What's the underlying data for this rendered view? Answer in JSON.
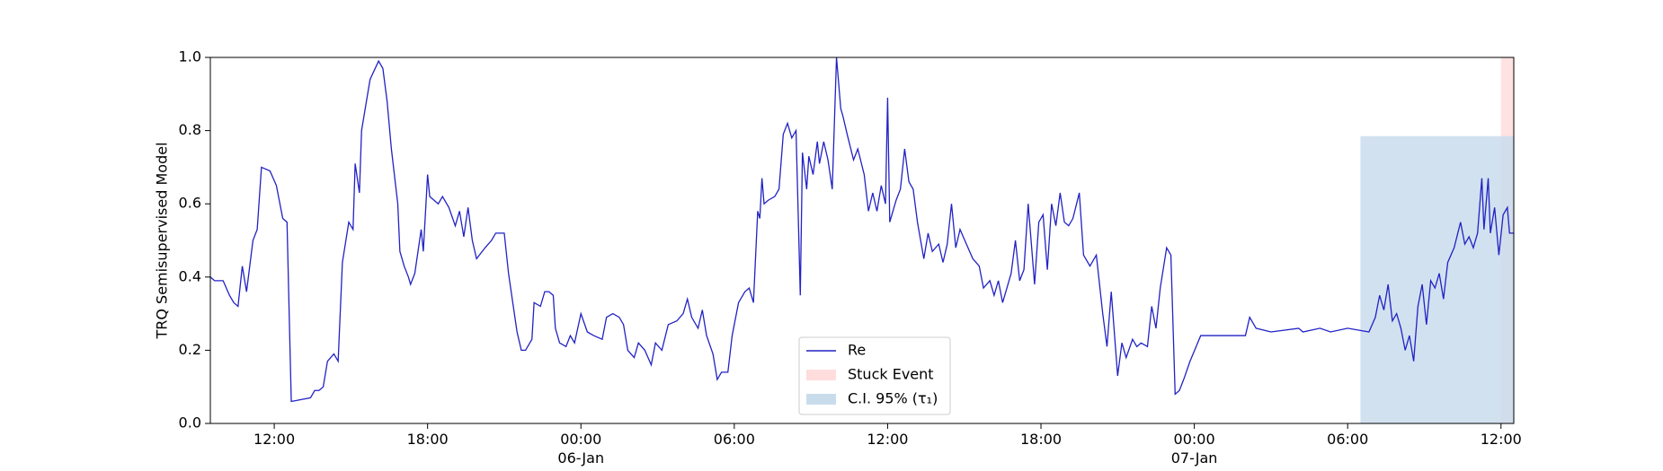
{
  "chart_data": {
    "type": "line",
    "ylabel": "TRQ Semisupervised Model",
    "x": [
      "1900-01-05T09:30",
      "1900-01-05T09:40",
      "1900-01-05T10:00",
      "1900-01-05T10:15",
      "1900-01-05T10:25",
      "1900-01-05T10:35",
      "1900-01-05T10:45",
      "1900-01-05T10:55",
      "1900-01-05T11:10",
      "1900-01-05T11:20",
      "1900-01-05T11:30",
      "1900-01-05T11:50",
      "1900-01-05T12:05",
      "1900-01-05T12:20",
      "1900-01-05T12:30",
      "1900-01-05T12:40",
      "1900-01-05T13:25",
      "1900-01-05T13:35",
      "1900-01-05T13:45",
      "1900-01-05T13:55",
      "1900-01-05T14:05",
      "1900-01-05T14:20",
      "1900-01-05T14:30",
      "1900-01-05T14:40",
      "1900-01-05T14:55",
      "1900-01-05T15:05",
      "1900-01-05T15:10",
      "1900-01-05T15:20",
      "1900-01-05T15:25",
      "1900-01-05T15:35",
      "1900-01-05T15:45",
      "1900-01-05T16:05",
      "1900-01-05T16:15",
      "1900-01-05T16:25",
      "1900-01-05T16:35",
      "1900-01-05T16:50",
      "1900-01-05T16:55",
      "1900-01-05T17:05",
      "1900-01-05T17:15",
      "1900-01-05T17:20",
      "1900-01-05T17:30",
      "1900-01-05T17:45",
      "1900-01-05T17:50",
      "1900-01-05T18:00",
      "1900-01-05T18:05",
      "1900-01-05T18:25",
      "1900-01-05T18:35",
      "1900-01-05T18:50",
      "1900-01-05T19:05",
      "1900-01-05T19:15",
      "1900-01-05T19:25",
      "1900-01-05T19:35",
      "1900-01-05T19:45",
      "1900-01-05T19:55",
      "1900-01-05T20:15",
      "1900-01-05T20:30",
      "1900-01-05T20:40",
      "1900-01-05T21:00",
      "1900-01-05T21:10",
      "1900-01-05T21:20",
      "1900-01-05T21:30",
      "1900-01-05T21:40",
      "1900-01-05T21:50",
      "1900-01-05T22:05",
      "1900-01-05T22:10",
      "1900-01-05T22:25",
      "1900-01-05T22:35",
      "1900-01-05T22:45",
      "1900-01-05T22:55",
      "1900-01-05T23:00",
      "1900-01-05T23:10",
      "1900-01-05T23:25",
      "1900-01-05T23:35",
      "1900-01-05T23:45",
      "1900-01-06T00:00",
      "1900-01-06T00:15",
      "1900-01-06T00:30",
      "1900-01-06T00:50",
      "1900-01-06T01:00",
      "1900-01-06T01:15",
      "1900-01-06T01:30",
      "1900-01-06T01:40",
      "1900-01-06T01:50",
      "1900-01-06T02:05",
      "1900-01-06T02:15",
      "1900-01-06T02:30",
      "1900-01-06T02:45",
      "1900-01-06T02:55",
      "1900-01-06T03:10",
      "1900-01-06T03:25",
      "1900-01-06T03:45",
      "1900-01-06T04:00",
      "1900-01-06T04:10",
      "1900-01-06T04:20",
      "1900-01-06T04:35",
      "1900-01-06T04:45",
      "1900-01-06T04:55",
      "1900-01-06T05:10",
      "1900-01-06T05:20",
      "1900-01-06T05:30",
      "1900-01-06T05:45",
      "1900-01-06T05:55",
      "1900-01-06T06:10",
      "1900-01-06T06:25",
      "1900-01-06T06:35",
      "1900-01-06T06:45",
      "1900-01-06T06:55",
      "1900-01-06T07:00",
      "1900-01-06T07:05",
      "1900-01-06T07:10",
      "1900-01-06T07:20",
      "1900-01-06T07:35",
      "1900-01-06T07:45",
      "1900-01-06T07:55",
      "1900-01-06T08:05",
      "1900-01-06T08:15",
      "1900-01-06T08:25",
      "1900-01-06T08:35",
      "1900-01-06T08:40",
      "1900-01-06T08:50",
      "1900-01-06T08:55",
      "1900-01-06T09:05",
      "1900-01-06T09:15",
      "1900-01-06T09:20",
      "1900-01-06T09:30",
      "1900-01-06T09:40",
      "1900-01-06T09:50",
      "1900-01-06T10:00",
      "1900-01-06T10:10",
      "1900-01-06T10:15",
      "1900-01-06T10:25",
      "1900-01-06T10:40",
      "1900-01-06T10:50",
      "1900-01-06T11:05",
      "1900-01-06T11:15",
      "1900-01-06T11:25",
      "1900-01-06T11:35",
      "1900-01-06T11:45",
      "1900-01-06T11:55",
      "1900-01-06T12:00",
      "1900-01-06T12:05",
      "1900-01-06T12:20",
      "1900-01-06T12:30",
      "1900-01-06T12:40",
      "1900-01-06T12:50",
      "1900-01-06T13:00",
      "1900-01-06T13:10",
      "1900-01-06T13:25",
      "1900-01-06T13:35",
      "1900-01-06T13:45",
      "1900-01-06T14:00",
      "1900-01-06T14:10",
      "1900-01-06T14:20",
      "1900-01-06T14:30",
      "1900-01-06T14:40",
      "1900-01-06T14:50",
      "1900-01-06T15:05",
      "1900-01-06T15:20",
      "1900-01-06T15:35",
      "1900-01-06T15:45",
      "1900-01-06T16:00",
      "1900-01-06T16:10",
      "1900-01-06T16:20",
      "1900-01-06T16:30",
      "1900-01-06T16:40",
      "1900-01-06T16:50",
      "1900-01-06T17:00",
      "1900-01-06T17:10",
      "1900-01-06T17:20",
      "1900-01-06T17:30",
      "1900-01-06T17:45",
      "1900-01-06T17:55",
      "1900-01-06T18:05",
      "1900-01-06T18:15",
      "1900-01-06T18:25",
      "1900-01-06T18:35",
      "1900-01-06T18:45",
      "1900-01-06T18:55",
      "1900-01-06T19:05",
      "1900-01-06T19:15",
      "1900-01-06T19:30",
      "1900-01-06T19:40",
      "1900-01-06T19:55",
      "1900-01-06T20:10",
      "1900-01-06T20:25",
      "1900-01-06T20:35",
      "1900-01-06T20:45",
      "1900-01-06T21:00",
      "1900-01-06T21:10",
      "1900-01-06T21:20",
      "1900-01-06T21:35",
      "1900-01-06T21:45",
      "1900-01-06T21:55",
      "1900-01-06T22:10",
      "1900-01-06T22:20",
      "1900-01-06T22:30",
      "1900-01-06T22:40",
      "1900-01-06T22:55",
      "1900-01-06T23:05",
      "1900-01-06T23:15",
      "1900-01-06T23:25",
      "1900-01-06T23:35",
      "1900-01-06T23:50",
      "1900-01-07T00:15",
      "1900-01-07T01:10",
      "1900-01-07T02:00",
      "1900-01-07T02:10",
      "1900-01-07T02:25",
      "1900-01-07T03:00",
      "1900-01-07T04:05",
      "1900-01-07T04:15",
      "1900-01-07T04:55",
      "1900-01-07T05:20",
      "1900-01-07T06:00",
      "1900-01-07T06:50",
      "1900-01-07T07:05",
      "1900-01-07T07:15",
      "1900-01-07T07:25",
      "1900-01-07T07:35",
      "1900-01-07T07:45",
      "1900-01-07T07:55",
      "1900-01-07T08:05",
      "1900-01-07T08:15",
      "1900-01-07T08:25",
      "1900-01-07T08:35",
      "1900-01-07T08:45",
      "1900-01-07T08:55",
      "1900-01-07T09:05",
      "1900-01-07T09:15",
      "1900-01-07T09:25",
      "1900-01-07T09:35",
      "1900-01-07T09:45",
      "1900-01-07T09:55",
      "1900-01-07T10:10",
      "1900-01-07T10:25",
      "1900-01-07T10:35",
      "1900-01-07T10:45",
      "1900-01-07T10:55",
      "1900-01-07T11:05",
      "1900-01-07T11:15",
      "1900-01-07T11:20",
      "1900-01-07T11:30",
      "1900-01-07T11:35",
      "1900-01-07T11:45",
      "1900-01-07T11:55",
      "1900-01-07T12:05",
      "1900-01-07T12:15",
      "1900-01-07T12:20",
      "1900-01-07T12:30"
    ],
    "series": [
      {
        "name": "Re",
        "color": "#2222c4",
        "values": [
          0.4,
          0.39,
          0.39,
          0.35,
          0.33,
          0.32,
          0.43,
          0.36,
          0.5,
          0.53,
          0.7,
          0.69,
          0.65,
          0.56,
          0.55,
          0.06,
          0.07,
          0.09,
          0.09,
          0.1,
          0.17,
          0.19,
          0.17,
          0.44,
          0.55,
          0.53,
          0.71,
          0.63,
          0.8,
          0.87,
          0.94,
          0.99,
          0.97,
          0.88,
          0.75,
          0.6,
          0.47,
          0.43,
          0.4,
          0.38,
          0.41,
          0.53,
          0.47,
          0.68,
          0.62,
          0.6,
          0.62,
          0.59,
          0.54,
          0.58,
          0.51,
          0.59,
          0.5,
          0.45,
          0.48,
          0.5,
          0.52,
          0.52,
          0.41,
          0.33,
          0.25,
          0.2,
          0.2,
          0.23,
          0.33,
          0.32,
          0.36,
          0.36,
          0.35,
          0.26,
          0.22,
          0.21,
          0.24,
          0.22,
          0.3,
          0.25,
          0.24,
          0.23,
          0.29,
          0.3,
          0.29,
          0.27,
          0.2,
          0.18,
          0.22,
          0.2,
          0.16,
          0.22,
          0.2,
          0.27,
          0.28,
          0.3,
          0.34,
          0.29,
          0.26,
          0.31,
          0.24,
          0.19,
          0.12,
          0.14,
          0.14,
          0.24,
          0.33,
          0.36,
          0.37,
          0.33,
          0.58,
          0.56,
          0.67,
          0.6,
          0.61,
          0.62,
          0.64,
          0.79,
          0.82,
          0.78,
          0.8,
          0.35,
          0.74,
          0.64,
          0.73,
          0.68,
          0.77,
          0.71,
          0.77,
          0.72,
          0.64,
          1.0,
          0.86,
          0.84,
          0.79,
          0.72,
          0.75,
          0.68,
          0.58,
          0.63,
          0.58,
          0.65,
          0.6,
          0.89,
          0.55,
          0.61,
          0.64,
          0.75,
          0.66,
          0.64,
          0.55,
          0.45,
          0.52,
          0.47,
          0.49,
          0.44,
          0.49,
          0.6,
          0.48,
          0.53,
          0.49,
          0.45,
          0.43,
          0.37,
          0.39,
          0.35,
          0.39,
          0.33,
          0.37,
          0.41,
          0.5,
          0.39,
          0.42,
          0.6,
          0.38,
          0.55,
          0.57,
          0.42,
          0.6,
          0.54,
          0.63,
          0.55,
          0.54,
          0.56,
          0.63,
          0.46,
          0.43,
          0.46,
          0.3,
          0.21,
          0.36,
          0.13,
          0.22,
          0.18,
          0.23,
          0.21,
          0.22,
          0.21,
          0.32,
          0.26,
          0.37,
          0.48,
          0.46,
          0.08,
          0.09,
          0.12,
          0.17,
          0.24,
          0.24,
          0.24,
          0.29,
          0.26,
          0.25,
          0.26,
          0.25,
          0.26,
          0.25,
          0.26,
          0.25,
          0.29,
          0.35,
          0.31,
          0.38,
          0.28,
          0.3,
          0.26,
          0.2,
          0.24,
          0.17,
          0.32,
          0.38,
          0.27,
          0.39,
          0.37,
          0.41,
          0.34,
          0.44,
          0.48,
          0.55,
          0.49,
          0.51,
          0.48,
          0.52,
          0.67,
          0.53,
          0.67,
          0.52,
          0.59,
          0.46,
          0.57,
          0.59,
          0.52,
          0.52
        ]
      }
    ],
    "spans": [
      {
        "name": "Stuck Event",
        "color": "#ffdddd",
        "x": [
          "1900-01-07T12:00",
          "1900-01-07T12:30"
        ],
        "y": [
          0,
          1
        ]
      },
      {
        "name": "C.I. 95% (τ₁)",
        "color": "#c9dcec",
        "x": [
          "1900-01-07T06:30",
          "1900-01-07T12:30"
        ],
        "y": [
          0,
          0.785
        ]
      }
    ],
    "xlim": [
      "1900-01-05T09:30",
      "1900-01-07T12:30"
    ],
    "xticks": [
      {
        "value": "1900-01-05T12:00",
        "label": "12:00"
      },
      {
        "value": "1900-01-05T18:00",
        "label": "18:00"
      },
      {
        "value": "1900-01-06T00:00",
        "label": "00:00\n06-Jan\n1900"
      },
      {
        "value": "1900-01-06T06:00",
        "label": "06:00"
      },
      {
        "value": "1900-01-06T12:00",
        "label": "12:00"
      },
      {
        "value": "1900-01-06T18:00",
        "label": "18:00"
      },
      {
        "value": "1900-01-07T00:00",
        "label": "00:00\n07-Jan"
      },
      {
        "value": "1900-01-07T06:00",
        "label": "06:00"
      },
      {
        "value": "1900-01-07T12:00",
        "label": "12:00"
      }
    ],
    "ylim": [
      0,
      1
    ],
    "yticks": [
      {
        "value": 0,
        "label": "0.0"
      },
      {
        "value": 0.2,
        "label": "0.2"
      },
      {
        "value": 0.4,
        "label": "0.4"
      },
      {
        "value": 0.6,
        "label": "0.6"
      },
      {
        "value": 0.8,
        "label": "0.8"
      },
      {
        "value": 1,
        "label": "1.0"
      }
    ],
    "grid": false,
    "legend": "lower center"
  }
}
